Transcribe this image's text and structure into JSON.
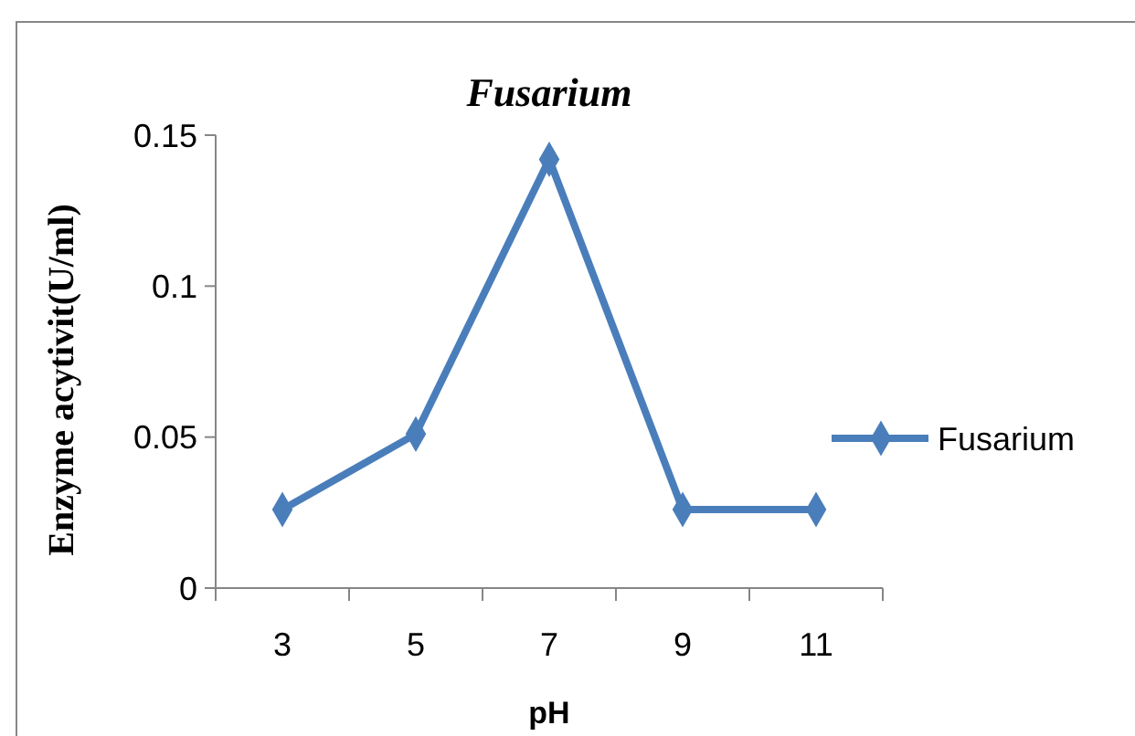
{
  "chart_data": {
    "type": "line",
    "title": "Fusarium",
    "xlabel": "pH",
    "ylabel": "Enzyme acytivit(U/ml)",
    "categories": [
      "3",
      "5",
      "7",
      "9",
      "11"
    ],
    "series": [
      {
        "name": "Fusarium",
        "color": "#4a7ebb",
        "values": [
          0.026,
          0.051,
          0.142,
          0.026,
          0.026
        ]
      }
    ],
    "ylim": [
      0,
      0.15
    ],
    "yticks": [
      0,
      0.05,
      0.1,
      0.15
    ],
    "grid": false,
    "legend": "right",
    "marker": "diamond",
    "line_style": "solid"
  }
}
